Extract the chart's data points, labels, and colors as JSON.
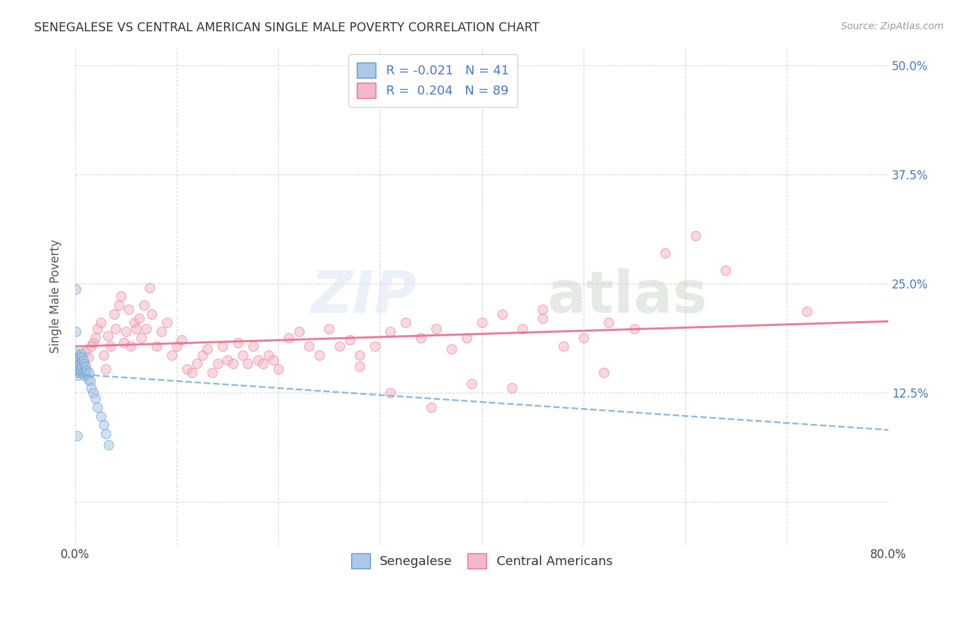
{
  "title": "SENEGALESE VS CENTRAL AMERICAN SINGLE MALE POVERTY CORRELATION CHART",
  "source": "Source: ZipAtlas.com",
  "ylabel": "Single Male Poverty",
  "xlim": [
    0.0,
    0.8
  ],
  "ylim": [
    -0.05,
    0.52
  ],
  "yticks": [
    0.0,
    0.125,
    0.25,
    0.375,
    0.5
  ],
  "ytick_labels": [
    "",
    "12.5%",
    "25.0%",
    "37.5%",
    "50.0%"
  ],
  "xticks": [
    0.0,
    0.1,
    0.2,
    0.3,
    0.4,
    0.5,
    0.6,
    0.7,
    0.8
  ],
  "xtick_labels": [
    "0.0%",
    "",
    "",
    "",
    "",
    "",
    "",
    "",
    "80.0%"
  ],
  "grid_color": "#cccccc",
  "bg_color": "#ffffff",
  "watermark_zip": "ZIP",
  "watermark_atlas": "atlas",
  "senegalese_color": "#aec6e8",
  "central_american_color": "#f5b8c8",
  "senegalese_edge_color": "#5599cc",
  "central_american_edge_color": "#e8708a",
  "regression_senegalese_color": "#7ab0d8",
  "regression_central_american_color": "#e8708a",
  "legend_line1": "R = -0.021   N = 41",
  "legend_line2": "R =  0.204   N = 89",
  "bottom_legend_senegalese": "Senegalese",
  "bottom_legend_central_american": "Central Americans",
  "marker_size": 100,
  "marker_alpha": 0.55,
  "senegalese_R": -0.021,
  "central_american_R": 0.204,
  "senegalese_x": [
    0.001,
    0.001,
    0.002,
    0.002,
    0.002,
    0.003,
    0.003,
    0.003,
    0.003,
    0.004,
    0.004,
    0.004,
    0.005,
    0.005,
    0.005,
    0.006,
    0.006,
    0.006,
    0.007,
    0.007,
    0.008,
    0.008,
    0.009,
    0.009,
    0.01,
    0.01,
    0.011,
    0.012,
    0.013,
    0.014,
    0.015,
    0.016,
    0.018,
    0.02,
    0.022,
    0.025,
    0.028,
    0.03,
    0.033,
    0.001,
    0.002
  ],
  "senegalese_y": [
    0.195,
    0.17,
    0.155,
    0.165,
    0.15,
    0.16,
    0.148,
    0.145,
    0.155,
    0.165,
    0.155,
    0.152,
    0.168,
    0.158,
    0.148,
    0.17,
    0.16,
    0.152,
    0.165,
    0.155,
    0.162,
    0.148,
    0.158,
    0.145,
    0.155,
    0.148,
    0.15,
    0.145,
    0.14,
    0.148,
    0.138,
    0.13,
    0.125,
    0.118,
    0.108,
    0.098,
    0.088,
    0.078,
    0.065,
    0.243,
    0.075
  ],
  "central_american_x": [
    0.003,
    0.005,
    0.008,
    0.01,
    0.013,
    0.016,
    0.018,
    0.02,
    0.022,
    0.025,
    0.028,
    0.03,
    0.032,
    0.035,
    0.038,
    0.04,
    0.043,
    0.045,
    0.048,
    0.05,
    0.053,
    0.055,
    0.058,
    0.06,
    0.063,
    0.065,
    0.068,
    0.07,
    0.073,
    0.075,
    0.08,
    0.085,
    0.09,
    0.095,
    0.1,
    0.105,
    0.11,
    0.115,
    0.12,
    0.125,
    0.13,
    0.135,
    0.14,
    0.145,
    0.15,
    0.155,
    0.16,
    0.165,
    0.17,
    0.175,
    0.18,
    0.185,
    0.19,
    0.195,
    0.2,
    0.21,
    0.22,
    0.23,
    0.24,
    0.25,
    0.26,
    0.27,
    0.28,
    0.295,
    0.31,
    0.325,
    0.34,
    0.355,
    0.37,
    0.385,
    0.4,
    0.42,
    0.44,
    0.46,
    0.48,
    0.5,
    0.525,
    0.55,
    0.58,
    0.61,
    0.64,
    0.52,
    0.43,
    0.35,
    0.28,
    0.46,
    0.39,
    0.31,
    0.72
  ],
  "central_american_y": [
    0.16,
    0.168,
    0.155,
    0.172,
    0.165,
    0.178,
    0.182,
    0.188,
    0.198,
    0.205,
    0.168,
    0.152,
    0.19,
    0.178,
    0.215,
    0.198,
    0.225,
    0.235,
    0.182,
    0.195,
    0.22,
    0.178,
    0.205,
    0.198,
    0.21,
    0.188,
    0.225,
    0.198,
    0.245,
    0.215,
    0.178,
    0.195,
    0.205,
    0.168,
    0.178,
    0.185,
    0.152,
    0.148,
    0.158,
    0.168,
    0.175,
    0.148,
    0.158,
    0.178,
    0.162,
    0.158,
    0.182,
    0.168,
    0.158,
    0.178,
    0.162,
    0.158,
    0.168,
    0.162,
    0.152,
    0.188,
    0.195,
    0.178,
    0.168,
    0.198,
    0.178,
    0.185,
    0.168,
    0.178,
    0.195,
    0.205,
    0.188,
    0.198,
    0.175,
    0.188,
    0.205,
    0.215,
    0.198,
    0.21,
    0.178,
    0.188,
    0.205,
    0.198,
    0.285,
    0.305,
    0.265,
    0.148,
    0.13,
    0.108,
    0.155,
    0.22,
    0.135,
    0.125,
    0.218
  ]
}
